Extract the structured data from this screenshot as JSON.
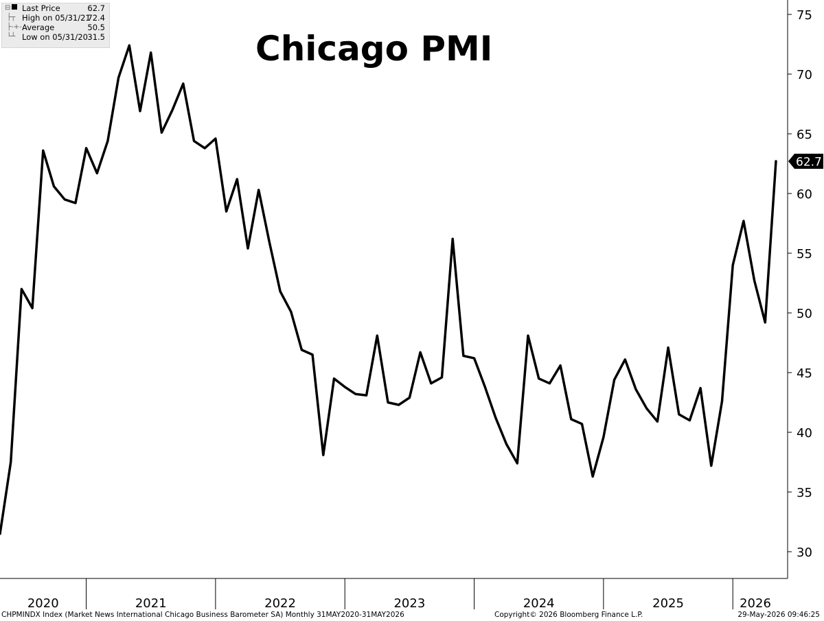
{
  "title": "Chicago PMI",
  "legend": [
    {
      "label": "Last Price",
      "value": "62.7",
      "icon": "square-icon"
    },
    {
      "label": "High on 05/31/21",
      "value": "72.4",
      "icon": "high-marker-icon"
    },
    {
      "label": "Average",
      "value": "50.5",
      "icon": "average-marker-icon"
    },
    {
      "label": "Low on 05/31/20",
      "value": "31.5",
      "icon": "low-marker-icon"
    }
  ],
  "footer": {
    "source": "CHPMINDX Index (Market News International Chicago Business Barometer SA) Monthly 31MAY2020-31MAY2026",
    "copyright": "Copyright© 2026 Bloomberg Finance L.P.",
    "timestamp": "29-May-2026 09:46:25"
  },
  "last_value_label": "62.7",
  "chart_data": {
    "type": "line",
    "title": "Chicago PMI",
    "xlabel": "",
    "ylabel": "",
    "ylim": [
      28,
      76
    ],
    "yticks": [
      30,
      35,
      40,
      45,
      50,
      55,
      60,
      65,
      70,
      75
    ],
    "xticks": [
      "2020",
      "2021",
      "2022",
      "2023",
      "2024",
      "2025",
      "2026"
    ],
    "grid": false,
    "series": [
      {
        "name": "Last Price",
        "color": "#000000",
        "x": [
          "2020-05",
          "2020-06",
          "2020-07",
          "2020-08",
          "2020-09",
          "2020-10",
          "2020-11",
          "2020-12",
          "2021-01",
          "2021-02",
          "2021-03",
          "2021-04",
          "2021-05",
          "2021-06",
          "2021-07",
          "2021-08",
          "2021-09",
          "2021-10",
          "2021-11",
          "2021-12",
          "2022-01",
          "2022-02",
          "2022-03",
          "2022-04",
          "2022-05",
          "2022-06",
          "2022-07",
          "2022-08",
          "2022-09",
          "2022-10",
          "2022-11",
          "2022-12",
          "2023-01",
          "2023-02",
          "2023-03",
          "2023-04",
          "2023-05",
          "2023-06",
          "2023-07",
          "2023-08",
          "2023-09",
          "2023-10",
          "2023-11",
          "2023-12",
          "2024-01",
          "2024-02",
          "2024-03",
          "2024-04",
          "2024-05",
          "2024-06",
          "2024-07",
          "2024-08",
          "2024-09",
          "2024-10",
          "2024-11",
          "2024-12",
          "2025-01",
          "2025-02",
          "2025-03",
          "2025-04",
          "2025-05",
          "2025-06",
          "2025-07",
          "2025-08",
          "2025-09",
          "2025-10",
          "2025-11",
          "2025-12",
          "2026-01",
          "2026-02",
          "2026-03",
          "2026-04",
          "2026-05"
        ],
        "values": [
          31.5,
          37.5,
          52.0,
          50.4,
          63.6,
          60.6,
          59.5,
          59.2,
          63.8,
          61.7,
          64.4,
          69.7,
          72.4,
          66.9,
          71.8,
          65.1,
          67.0,
          69.2,
          64.4,
          63.8,
          64.6,
          58.5,
          61.2,
          55.4,
          60.3,
          55.9,
          51.8,
          50.1,
          46.9,
          46.5,
          38.1,
          44.5,
          43.8,
          43.2,
          43.1,
          48.1,
          42.5,
          42.3,
          42.9,
          46.7,
          44.1,
          44.6,
          56.2,
          46.4,
          46.2,
          43.8,
          41.2,
          39.0,
          37.4,
          48.1,
          44.5,
          44.1,
          45.6,
          41.1,
          40.7,
          36.3,
          39.6,
          44.4,
          46.1,
          43.6,
          42.0,
          40.9,
          47.1,
          41.5,
          41.0,
          43.7,
          37.2,
          42.6,
          54.0,
          57.7,
          52.7,
          49.2,
          62.7
        ]
      }
    ]
  }
}
